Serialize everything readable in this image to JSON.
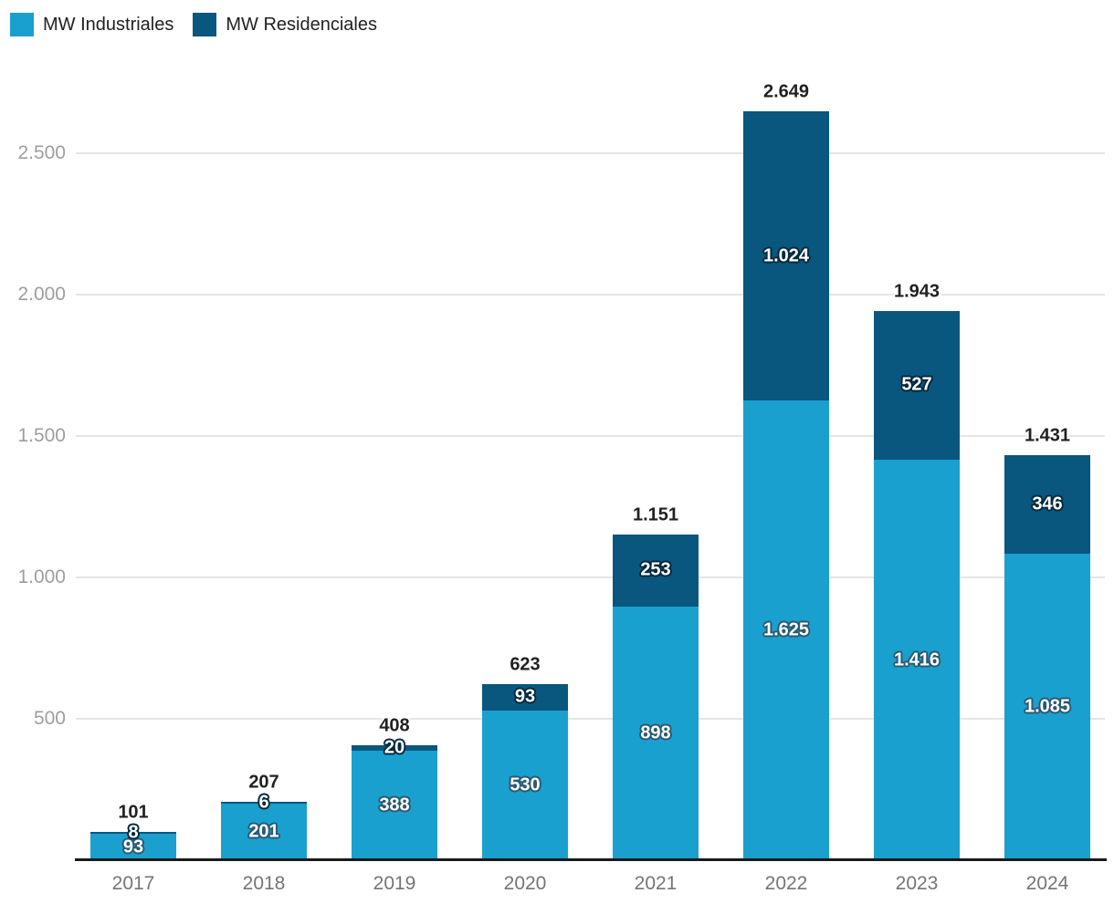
{
  "legend": {
    "items": [
      {
        "label": "MW Industriales",
        "color": "#1AA0CE"
      },
      {
        "label": "MW Residenciales",
        "color": "#09567E"
      }
    ]
  },
  "chart_data": {
    "type": "bar",
    "stacked": true,
    "title": "",
    "xlabel": "",
    "ylabel": "",
    "legend_position": "top-left",
    "grid": true,
    "categories": [
      "2017",
      "2018",
      "2019",
      "2020",
      "2021",
      "2022",
      "2023",
      "2024"
    ],
    "series": [
      {
        "name": "MW Industriales",
        "color": "#1AA0CE",
        "label_outline": "#2a5a72",
        "values": [
          93,
          201,
          388,
          530,
          898,
          1625,
          1416,
          1085
        ],
        "labels": [
          "93",
          "201",
          "388",
          "530",
          "898",
          "1.625",
          "1.416",
          "1.085"
        ]
      },
      {
        "name": "MW Residenciales",
        "color": "#09567E",
        "label_outline": "#04293d",
        "values": [
          8,
          6,
          20,
          93,
          253,
          1024,
          527,
          346
        ],
        "labels": [
          "8",
          "6",
          "20",
          "93",
          "253",
          "1.024",
          "527",
          "346"
        ]
      }
    ],
    "totals": [
      101,
      207,
      408,
      623,
      1151,
      2649,
      1943,
      1431
    ],
    "total_labels": [
      "101",
      "207",
      "408",
      "623",
      "1.151",
      "2.649",
      "1.943",
      "1.431"
    ],
    "y_axis": {
      "range": [
        0,
        2750
      ],
      "ticks": [
        {
          "value": 500,
          "label": "500"
        },
        {
          "value": 1000,
          "label": "1.000"
        },
        {
          "value": 1500,
          "label": "1.500"
        },
        {
          "value": 2000,
          "label": "2.000"
        },
        {
          "value": 2500,
          "label": "2.500"
        }
      ]
    }
  },
  "colors": {
    "background": "#FFFFFF",
    "grid": "#E5E5E5",
    "axis_line": "#1A1A1A",
    "y_tick_text": "#9E9E9E",
    "x_tick_text": "#757575",
    "total_label_text": "#212121",
    "segment_label_text": "#FFFFFF",
    "legend_text": "#212121"
  }
}
